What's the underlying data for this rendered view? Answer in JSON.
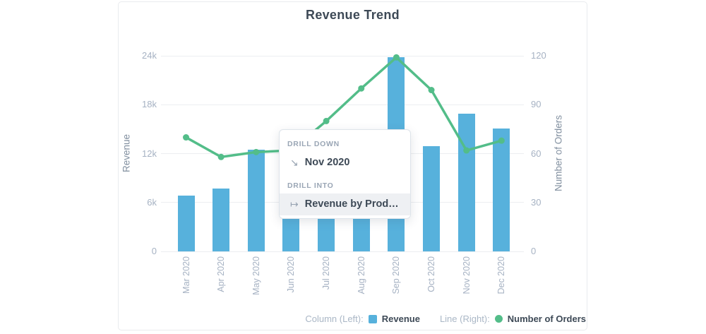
{
  "chart_data": {
    "type": "combo",
    "title": "Revenue Trend",
    "categories": [
      "Mar 2020",
      "Apr 2020",
      "May 2020",
      "Jun 2020",
      "Jul 2020",
      "Aug 2020",
      "Sep 2020",
      "Oct 2020",
      "Nov 2020",
      "Dec 2020"
    ],
    "series": [
      {
        "name": "Revenue",
        "render": "bar",
        "axis": "left",
        "color": "#57b1dc",
        "values": [
          6900,
          7700,
          12500,
          9000,
          10000,
          11000,
          23800,
          12900,
          16900,
          15100
        ]
      },
      {
        "name": "Number of Orders",
        "render": "line",
        "axis": "right",
        "color": "#53bd89",
        "values": [
          70,
          58,
          61,
          62,
          80,
          100,
          119,
          99,
          62,
          68
        ]
      }
    ],
    "left_axis": {
      "label": "Revenue",
      "min": 0,
      "max": 24000,
      "ticks": [
        {
          "value": 0,
          "label": "0"
        },
        {
          "value": 6000,
          "label": "6k"
        },
        {
          "value": 12000,
          "label": "12k"
        },
        {
          "value": 18000,
          "label": "18k"
        },
        {
          "value": 24000,
          "label": "24k"
        }
      ]
    },
    "right_axis": {
      "label": "Number of Orders",
      "min": 0,
      "max": 120,
      "ticks": [
        {
          "value": 0,
          "label": "0"
        },
        {
          "value": 30,
          "label": "30"
        },
        {
          "value": 60,
          "label": "60"
        },
        {
          "value": 90,
          "label": "90"
        },
        {
          "value": 120,
          "label": "120"
        }
      ]
    },
    "grid": true,
    "legend_position": "bottom-right"
  },
  "legend": {
    "column_prefix": "Column (Left):",
    "column_series": "Revenue",
    "line_prefix": "Line (Right):",
    "line_series": "Number of Orders"
  },
  "context_menu": {
    "sections": [
      {
        "header": "DRILL DOWN",
        "items": [
          {
            "icon": "drill-down-icon",
            "label": "Nov 2020",
            "highlighted": false
          }
        ]
      },
      {
        "header": "DRILL INTO",
        "items": [
          {
            "icon": "drill-into-icon",
            "label": "Revenue by Prod…",
            "highlighted": true
          }
        ]
      }
    ]
  },
  "icons": {
    "drill_down": "↘",
    "drill_into": "↦"
  },
  "colors": {
    "bar": "#57b1dc",
    "line": "#53bd89",
    "title_text": "#3d4956",
    "muted_text": "#a6b2c3",
    "gridline": "#eceef1"
  }
}
